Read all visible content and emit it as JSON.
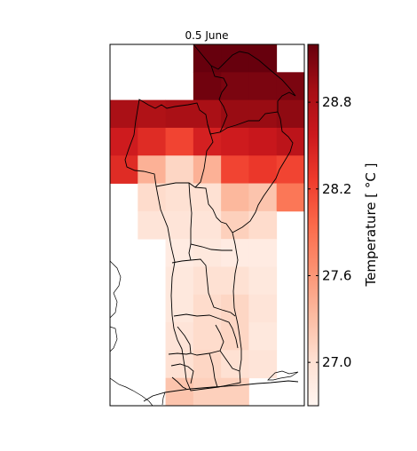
{
  "map": {
    "title": "0.5 June"
  },
  "colorbar": {
    "label": "Temperature [$^\\circ C$]",
    "label_display": "Temperature [ °C ]",
    "min": 26.7,
    "max": 29.2,
    "ticks": [
      "27.0",
      "27.6",
      "28.2",
      "28.8"
    ],
    "tick_values": [
      27.0,
      27.6,
      28.2,
      28.8
    ],
    "colormap": "Reds"
  },
  "chart_data": {
    "type": "heatmap",
    "title": "0.5 June",
    "colormap": "Reds",
    "vmin": 26.7,
    "vmax": 29.2,
    "grid_rows": 13,
    "grid_cols": 7,
    "values": [
      [
        null,
        null,
        null,
        29.2,
        29.2,
        29.2,
        null
      ],
      [
        null,
        null,
        null,
        29.15,
        29.1,
        29.1,
        29.1
      ],
      [
        28.85,
        28.8,
        28.85,
        28.85,
        28.95,
        28.95,
        29.0
      ],
      [
        28.55,
        28.4,
        28.2,
        28.5,
        28.55,
        28.6,
        28.7
      ],
      [
        28.4,
        27.4,
        27.1,
        27.4,
        28.2,
        28.3,
        28.2
      ],
      [
        null,
        27.05,
        27.0,
        27.0,
        27.35,
        27.25,
        27.85
      ],
      [
        null,
        26.95,
        26.95,
        26.95,
        27.15,
        27.05,
        null
      ],
      [
        null,
        null,
        26.85,
        26.9,
        26.85,
        26.85,
        null
      ],
      [
        null,
        null,
        26.9,
        27.0,
        27.0,
        26.9,
        null
      ],
      [
        null,
        null,
        26.9,
        27.05,
        27.1,
        26.95,
        null
      ],
      [
        null,
        null,
        26.95,
        27.05,
        27.1,
        26.9,
        null
      ],
      [
        null,
        null,
        27.0,
        27.1,
        27.0,
        26.95,
        null
      ],
      [
        null,
        null,
        27.25,
        27.15,
        27.15,
        null,
        null
      ]
    ]
  }
}
